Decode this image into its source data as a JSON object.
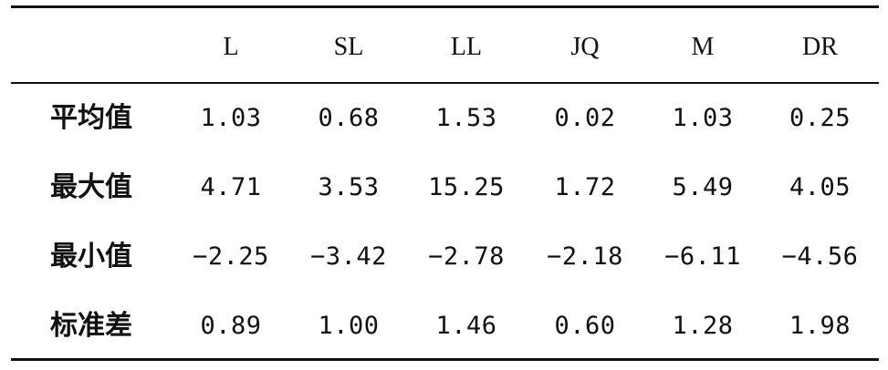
{
  "table": {
    "columns": [
      "L",
      "SL",
      "LL",
      "JQ",
      "M",
      "DR"
    ],
    "rows": [
      {
        "label": "平均值",
        "values": [
          "1.03",
          "0.68",
          "1.53",
          "0.02",
          "1.03",
          "0.25"
        ]
      },
      {
        "label": "最大值",
        "values": [
          "4.71",
          "3.53",
          "15.25",
          "1.72",
          "5.49",
          "4.05"
        ]
      },
      {
        "label": "最小值",
        "values": [
          "−2.25",
          "−3.42",
          "−2.78",
          "−2.18",
          "−6.11",
          "−4.56"
        ]
      },
      {
        "label": "标准差",
        "values": [
          "0.89",
          "1.00",
          "1.46",
          "0.60",
          "1.28",
          "1.98"
        ]
      }
    ]
  }
}
